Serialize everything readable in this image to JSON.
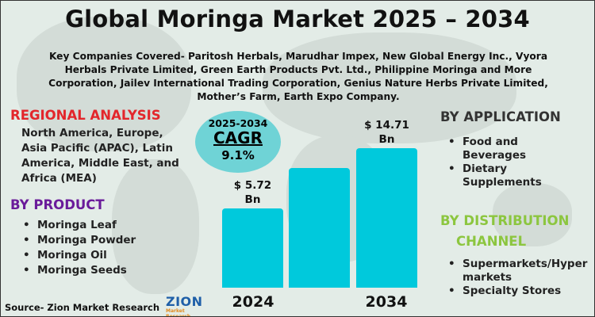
{
  "title": "Global Moringa Market 2025 – 2034",
  "companies": "Key Companies Covered- Paritosh Herbals, Marudhar Impex, New Global Energy Inc., Vyora Herbals Private Limited, Green Earth Products Pvt. Ltd., Philippine Moringa and More Corporation, Jailev International Trading Corporation, Genius Nature Herbs Private Limited, Mother’s Farm, Earth Expo Company.",
  "regional": {
    "heading": "REGIONAL ANALYSIS",
    "text": "North America, Europe, Asia Pacific (APAC), Latin America, Middle East, and Africa (MEA)"
  },
  "product": {
    "heading": "BY PRODUCT",
    "items": [
      "Moringa Leaf",
      "Moringa Powder",
      "Moringa Oil",
      "Moringa Seeds"
    ]
  },
  "application": {
    "heading": "BY APPLICATION",
    "items": [
      "Food and Beverages",
      "Dietary Supplements"
    ]
  },
  "distribution": {
    "heading_line1": "BY DISTRIBUTION",
    "heading_line2": "CHANNEL",
    "items": [
      "Supermarkets/Hyper markets",
      "Specialty Stores"
    ]
  },
  "cagr": {
    "period": "2025-2034",
    "label": "CAGR",
    "value": "9.1%"
  },
  "source": "Source- Zion Market Research",
  "logo": {
    "line1": "ZION",
    "line2": "Market Research"
  },
  "colors": {
    "regional": "#e3262b",
    "product": "#6a1b9a",
    "application": "#333333",
    "distribution": "#8cc63f",
    "bar": "#00c9dc",
    "cagr_circle": "#6fd3d6"
  },
  "chart_data": {
    "type": "bar",
    "categories": [
      "2024",
      "",
      "2034"
    ],
    "values": [
      5.72,
      null,
      14.71
    ],
    "labels": [
      "$ 5.72 Bn",
      "",
      "$ 14.71 Bn"
    ],
    "unit": "USD Billion"
  }
}
